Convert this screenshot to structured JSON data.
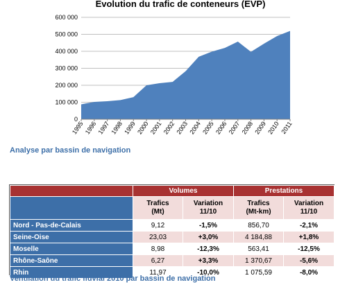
{
  "chart_data": {
    "type": "area",
    "title": "Evolution du trafic de conteneurs (EVP)",
    "x": [
      "1995",
      "1996",
      "1997",
      "1998",
      "1999",
      "2000",
      "2001",
      "2002",
      "2003",
      "2004",
      "2005",
      "2006",
      "2007",
      "2008",
      "2009",
      "2010",
      "2011"
    ],
    "values": [
      88000,
      102000,
      106000,
      113000,
      130000,
      200000,
      212000,
      220000,
      283000,
      368000,
      398000,
      420000,
      457000,
      397000,
      445000,
      490000,
      520000
    ],
    "ylim": [
      0,
      600000
    ],
    "yticks": [
      "0",
      "100 000",
      "200 000",
      "300 000",
      "400 000",
      "500 000",
      "600 000"
    ],
    "grid": true,
    "color": "#4f81bd"
  },
  "captions": {
    "analysis": "Analyse par bassin de navigation",
    "table": "Ventilation du trafic fluvial 2010 par bassin de navigation"
  },
  "table": {
    "groups": [
      "Volumes",
      "Prestations"
    ],
    "subheaders": [
      {
        "line1": "Trafics",
        "line2": "(Mt)"
      },
      {
        "line1": "Variation",
        "line2": "11/10"
      },
      {
        "line1": "Trafics",
        "line2": "(Mt-km)"
      },
      {
        "line1": "Variation",
        "line2": "11/10"
      }
    ],
    "rows": [
      {
        "label": "Nord - Pas-de-Calais",
        "vol": "9,12",
        "vol_var": "-1,5%",
        "prest": "856,70",
        "prest_var": "-2,1%"
      },
      {
        "label": "Seine-Oise",
        "vol": "23,03",
        "vol_var": "+3,0%",
        "prest": "4 184,88",
        "prest_var": "+1,8%"
      },
      {
        "label": "Moselle",
        "vol": "8,98",
        "vol_var": "-12,3%",
        "prest": "563,41",
        "prest_var": "-12,5%"
      },
      {
        "label": "Rhône-Saône",
        "vol": "6,27",
        "vol_var": "+3,3%",
        "prest": "1 370,67",
        "prest_var": "-5,6%"
      },
      {
        "label": "Rhin",
        "vol": "11,97",
        "vol_var": "-10,0%",
        "prest": "1 075,59",
        "prest_var": "-8,0%"
      }
    ]
  }
}
